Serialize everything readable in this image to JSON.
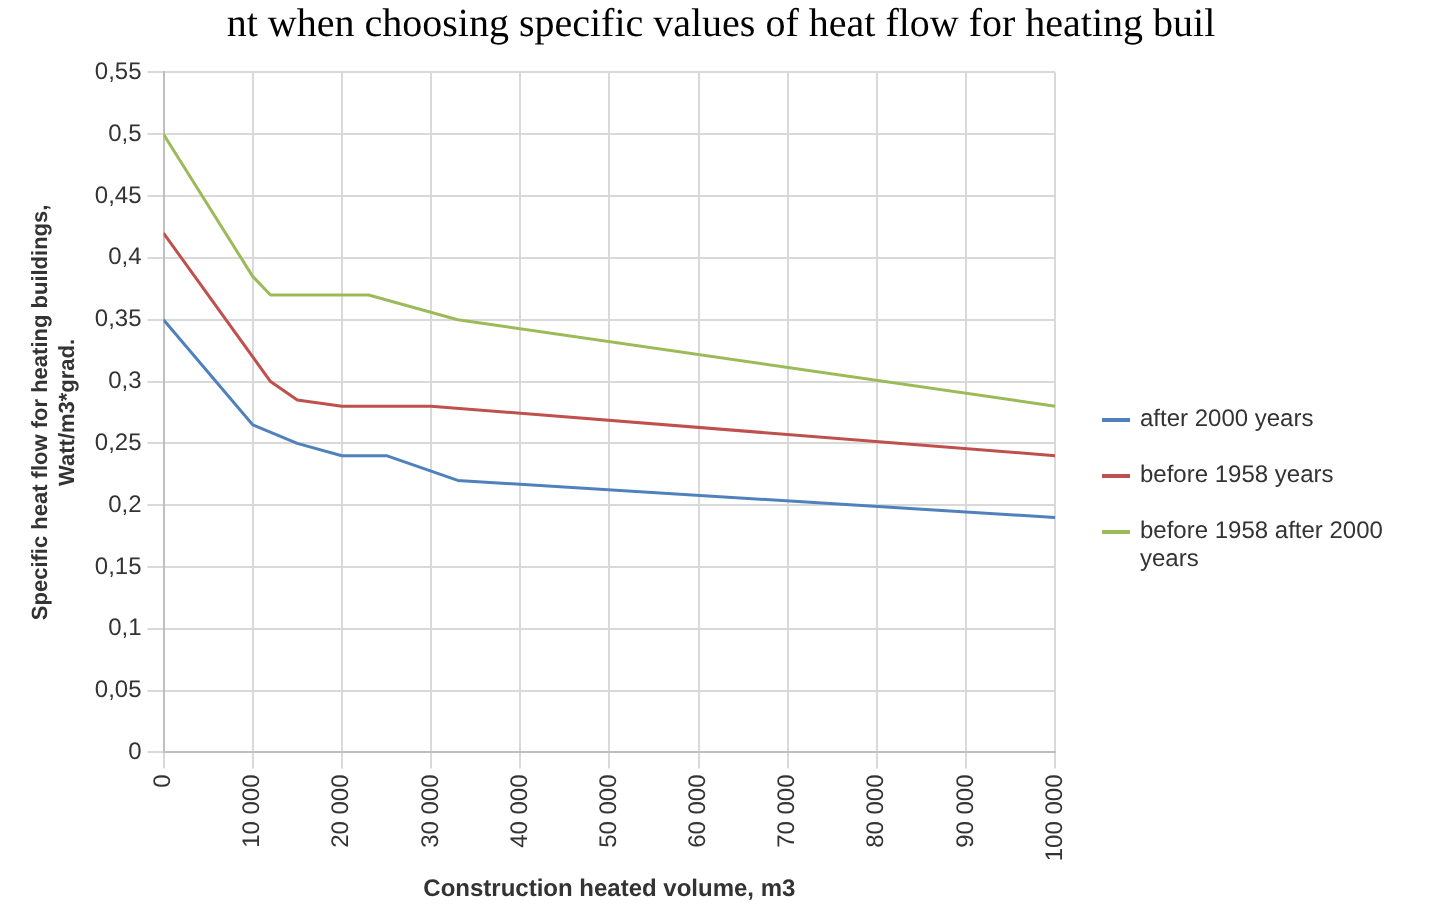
{
  "chart_data": {
    "type": "line",
    "title": "nt when choosing specific values of heat flow for heating buil",
    "xlabel": "Construction heated volume, m3",
    "ylabel": "Specific heat flow for heating buildings, Watt/m3*grad.",
    "series": [
      {
        "name": "after 2000  years",
        "color": "#4f81bd",
        "x": [
          0,
          10000,
          15000,
          20000,
          25000,
          33000,
          100000
        ],
        "values": [
          0.35,
          0.265,
          0.25,
          0.24,
          0.24,
          0.22,
          0.19
        ]
      },
      {
        "name": "before 1958 years",
        "color": "#c0504d",
        "x": [
          0,
          12000,
          15000,
          20000,
          30000,
          100000
        ],
        "values": [
          0.42,
          0.3,
          0.285,
          0.28,
          0.28,
          0.24
        ]
      },
      {
        "name": "before 1958 after 2000 years",
        "color": "#9bbb59",
        "x": [
          0,
          10000,
          12000,
          23000,
          33000,
          100000
        ],
        "values": [
          0.5,
          0.385,
          0.37,
          0.37,
          0.35,
          0.28
        ]
      }
    ],
    "xlim": [
      0,
      100000
    ],
    "xticks": [
      0,
      {
        "value": 10000,
        "label": "10 000"
      },
      {
        "value": 20000,
        "label": "20 000"
      },
      {
        "value": 30000,
        "label": "30 000"
      },
      {
        "value": 40000,
        "label": "40 000"
      },
      {
        "value": 50000,
        "label": "50 000"
      },
      {
        "value": 60000,
        "label": "60 000"
      },
      {
        "value": 70000,
        "label": "70 000"
      },
      {
        "value": 80000,
        "label": "80 000"
      },
      {
        "value": 90000,
        "label": "90 000"
      },
      {
        "value": 100000,
        "label": "100 000"
      }
    ],
    "ylim": [
      0,
      0.55
    ],
    "yticks": [
      0,
      {
        "value": 0.05,
        "label": "0,05"
      },
      {
        "value": 0.1,
        "label": "0,1"
      },
      {
        "value": 0.15,
        "label": "0,15"
      },
      {
        "value": 0.2,
        "label": "0,2"
      },
      {
        "value": 0.25,
        "label": "0,25"
      },
      {
        "value": 0.3,
        "label": "0,3"
      },
      {
        "value": 0.35,
        "label": "0,35"
      },
      {
        "value": 0.4,
        "label": "0,4"
      },
      {
        "value": 0.45,
        "label": "0,45"
      },
      {
        "value": 0.5,
        "label": "0,5"
      },
      {
        "value": 0.55,
        "label": "0,55"
      }
    ],
    "grid": true,
    "legend": "right",
    "marker": "none",
    "line_style": "solid"
  }
}
